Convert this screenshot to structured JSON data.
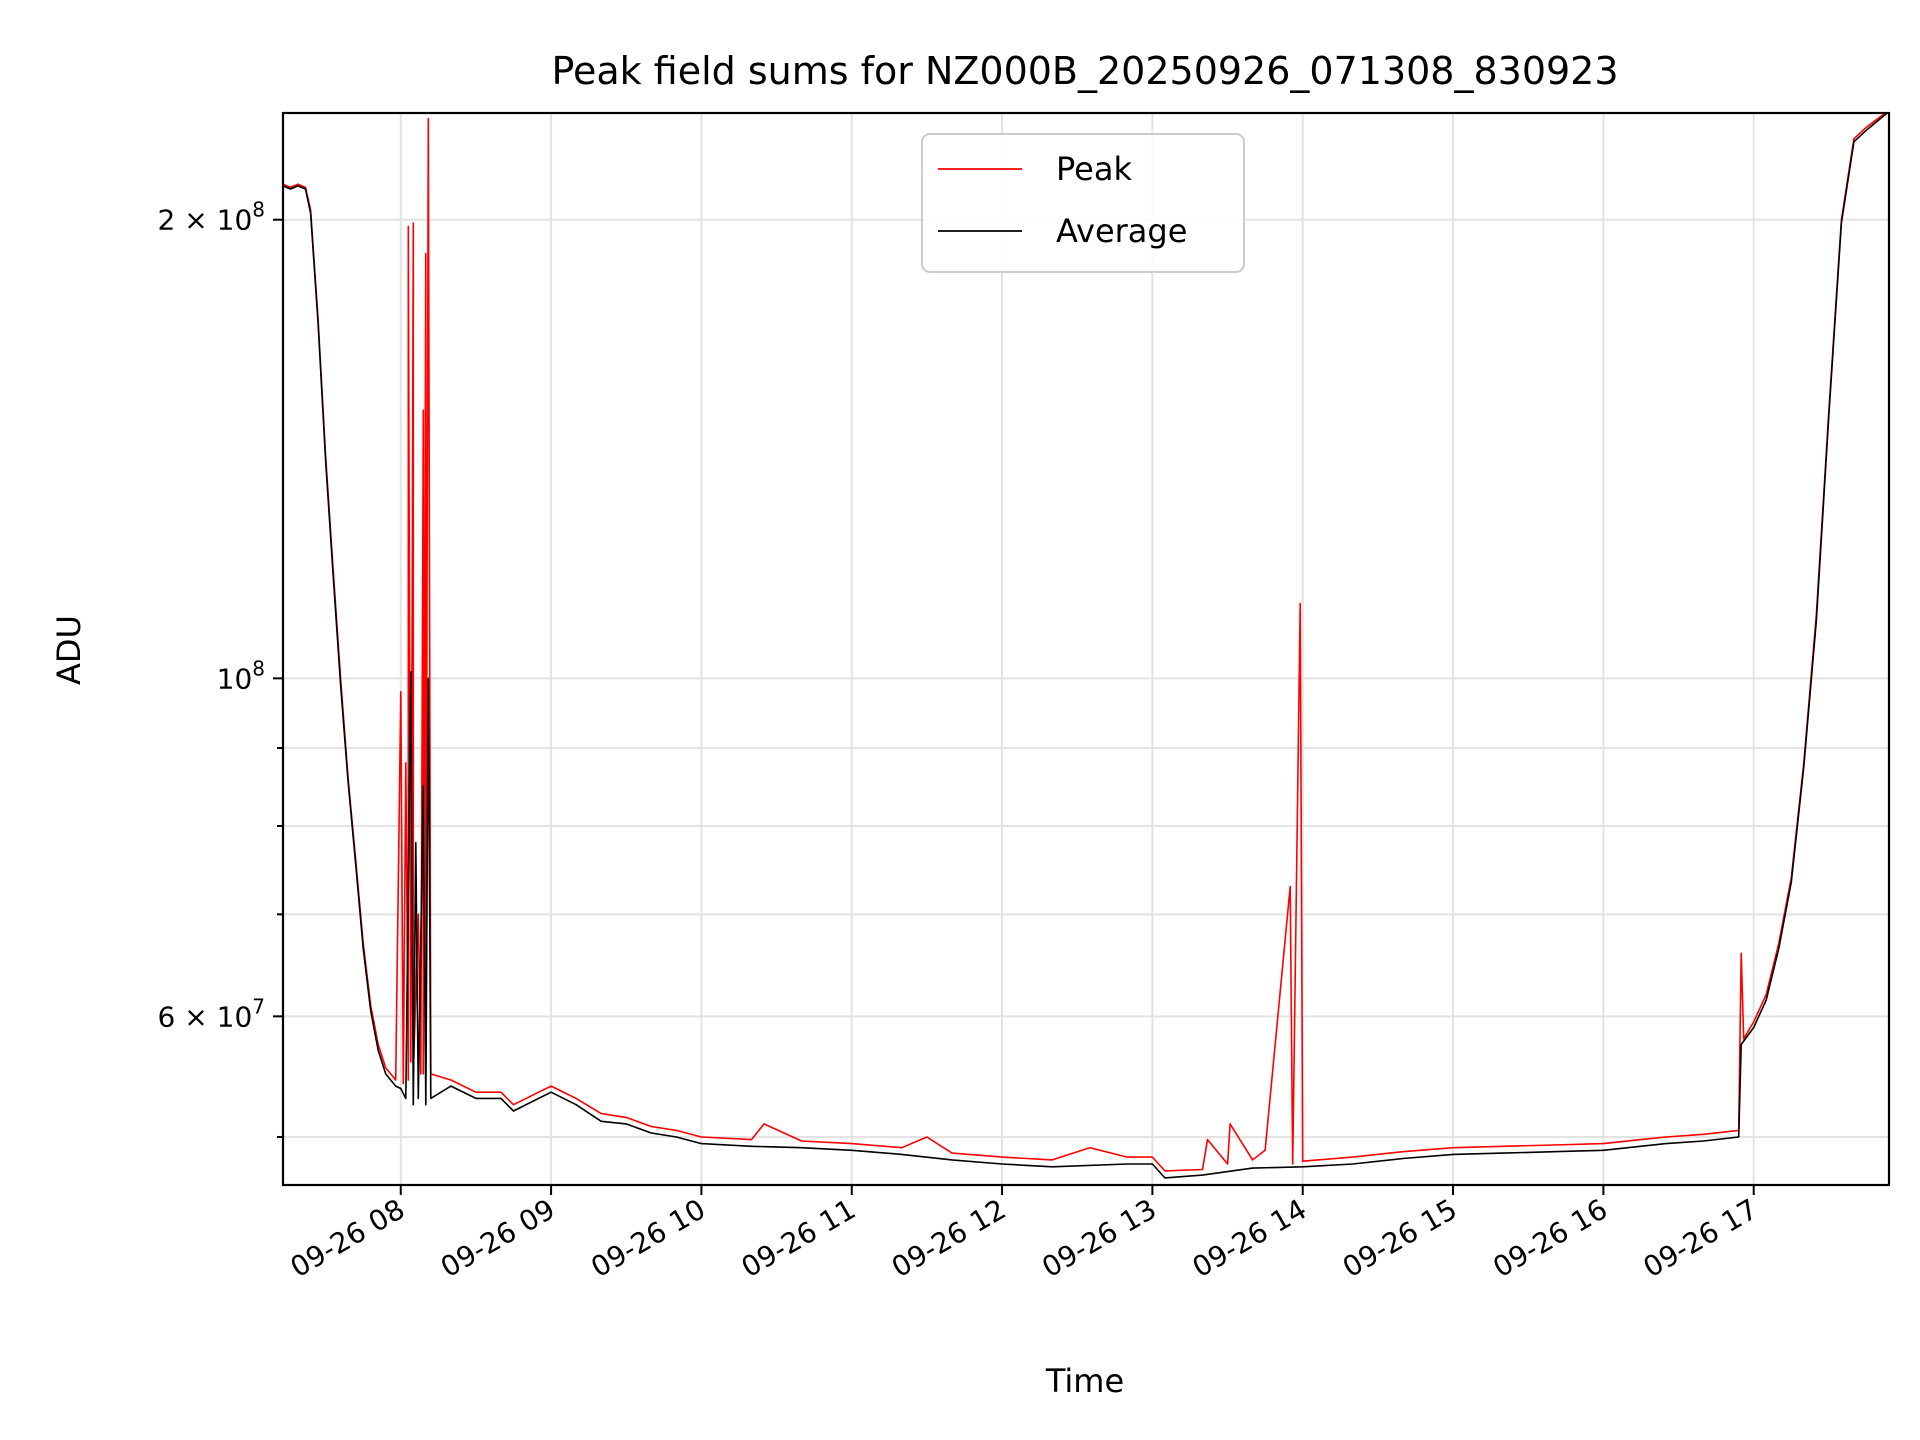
{
  "chart_data": {
    "type": "line",
    "title": "Peak field sums for NZ000B_20250926_071308_830923",
    "xlabel": "Time",
    "ylabel": "ADU",
    "yscale": "log",
    "xlim": [
      "2025-09-26 07:13",
      "2025-09-26 17:54"
    ],
    "ylim": [
      46500000,
      235000000
    ],
    "grid": true,
    "legend_position": "top-center",
    "x_ticks": [
      {
        "value": "2025-09-26 08:00",
        "label": "09-26 08"
      },
      {
        "value": "2025-09-26 09:00",
        "label": "09-26 09"
      },
      {
        "value": "2025-09-26 10:00",
        "label": "09-26 10"
      },
      {
        "value": "2025-09-26 11:00",
        "label": "09-26 11"
      },
      {
        "value": "2025-09-26 12:00",
        "label": "09-26 12"
      },
      {
        "value": "2025-09-26 13:00",
        "label": "09-26 13"
      },
      {
        "value": "2025-09-26 14:00",
        "label": "09-26 14"
      },
      {
        "value": "2025-09-26 15:00",
        "label": "09-26 15"
      },
      {
        "value": "2025-09-26 16:00",
        "label": "09-26 16"
      },
      {
        "value": "2025-09-26 17:00",
        "label": "09-26 17"
      }
    ],
    "y_major_ticks": [
      {
        "value": 60000000,
        "mant": "6",
        "exp": "7"
      },
      {
        "value": 100000000,
        "mant": "",
        "exp": "8"
      },
      {
        "value": 200000000,
        "mant": "2",
        "exp": "8"
      }
    ],
    "y_minor_ticks": [
      50000000,
      70000000,
      80000000,
      90000000
    ],
    "series": [
      {
        "name": "Peak",
        "color": "#ff0000",
        "points": [
          [
            "2025-09-26 07:13",
            211000000
          ],
          [
            "2025-09-26 07:16",
            210000000
          ],
          [
            "2025-09-26 07:19",
            211000000
          ],
          [
            "2025-09-26 07:22",
            210000000
          ],
          [
            "2025-09-26 07:24",
            203000000
          ],
          [
            "2025-09-26 07:27",
            172000000
          ],
          [
            "2025-09-26 07:30",
            140000000
          ],
          [
            "2025-09-26 07:33",
            118000000
          ],
          [
            "2025-09-26 07:36",
            100000000
          ],
          [
            "2025-09-26 07:39",
            86000000
          ],
          [
            "2025-09-26 07:42",
            76000000
          ],
          [
            "2025-09-26 07:45",
            67000000
          ],
          [
            "2025-09-26 07:48",
            61000000
          ],
          [
            "2025-09-26 07:51",
            57500000
          ],
          [
            "2025-09-26 07:54",
            55500000
          ],
          [
            "2025-09-26 07:58",
            54500000
          ],
          [
            "2025-09-26 08:00",
            98000000
          ],
          [
            "2025-09-26 08:01",
            54200000
          ],
          [
            "2025-09-26 08:02",
            88000000
          ],
          [
            "2025-09-26 08:03",
            54500000
          ],
          [
            "2025-09-26 08:03",
            198000000
          ],
          [
            "2025-09-26 08:04",
            56000000
          ],
          [
            "2025-09-26 08:05",
            199000000
          ],
          [
            "2025-09-26 08:05",
            55000000
          ],
          [
            "2025-09-26 08:07",
            70000000
          ],
          [
            "2025-09-26 08:08",
            55000000
          ],
          [
            "2025-09-26 08:09",
            150000000
          ],
          [
            "2025-09-26 08:09",
            55000000
          ],
          [
            "2025-09-26 08:10",
            190000000
          ],
          [
            "2025-09-26 08:10",
            56000000
          ],
          [
            "2025-09-26 08:11",
            233000000
          ],
          [
            "2025-09-26 08:12",
            55000000
          ],
          [
            "2025-09-26 08:20",
            54500000
          ],
          [
            "2025-09-26 08:30",
            53500000
          ],
          [
            "2025-09-26 08:40",
            53500000
          ],
          [
            "2025-09-26 08:45",
            52500000
          ],
          [
            "2025-09-26 08:55",
            53500000
          ],
          [
            "2025-09-26 09:00",
            54000000
          ],
          [
            "2025-09-26 09:10",
            53000000
          ],
          [
            "2025-09-26 09:20",
            51800000
          ],
          [
            "2025-09-26 09:30",
            51500000
          ],
          [
            "2025-09-26 09:40",
            50800000
          ],
          [
            "2025-09-26 09:50",
            50500000
          ],
          [
            "2025-09-26 10:00",
            50000000
          ],
          [
            "2025-09-26 10:20",
            49800000
          ],
          [
            "2025-09-26 10:25",
            51000000
          ],
          [
            "2025-09-26 10:40",
            49700000
          ],
          [
            "2025-09-26 11:00",
            49500000
          ],
          [
            "2025-09-26 11:20",
            49200000
          ],
          [
            "2025-09-26 11:30",
            50000000
          ],
          [
            "2025-09-26 11:40",
            48800000
          ],
          [
            "2025-09-26 12:00",
            48500000
          ],
          [
            "2025-09-26 12:20",
            48300000
          ],
          [
            "2025-09-26 12:35",
            49200000
          ],
          [
            "2025-09-26 12:50",
            48500000
          ],
          [
            "2025-09-26 13:00",
            48500000
          ],
          [
            "2025-09-26 13:05",
            47500000
          ],
          [
            "2025-09-26 13:20",
            47600000
          ],
          [
            "2025-09-26 13:22",
            49800000
          ],
          [
            "2025-09-26 13:30",
            48000000
          ],
          [
            "2025-09-26 13:31",
            51000000
          ],
          [
            "2025-09-26 13:40",
            48300000
          ],
          [
            "2025-09-26 13:45",
            49000000
          ],
          [
            "2025-09-26 13:55",
            73000000
          ],
          [
            "2025-09-26 13:56",
            48000000
          ],
          [
            "2025-09-26 13:59",
            112000000
          ],
          [
            "2025-09-26 14:00",
            48200000
          ],
          [
            "2025-09-26 14:20",
            48500000
          ],
          [
            "2025-09-26 14:40",
            48900000
          ],
          [
            "2025-09-26 15:00",
            49200000
          ],
          [
            "2025-09-26 15:20",
            49300000
          ],
          [
            "2025-09-26 15:40",
            49400000
          ],
          [
            "2025-09-26 16:00",
            49500000
          ],
          [
            "2025-09-26 16:25",
            50000000
          ],
          [
            "2025-09-26 16:40",
            50200000
          ],
          [
            "2025-09-26 16:54",
            50500000
          ],
          [
            "2025-09-26 16:55",
            66000000
          ],
          [
            "2025-09-26 16:56",
            58000000
          ],
          [
            "2025-09-26 17:00",
            59500000
          ],
          [
            "2025-09-26 17:05",
            62000000
          ],
          [
            "2025-09-26 17:10",
            67000000
          ],
          [
            "2025-09-26 17:15",
            74000000
          ],
          [
            "2025-09-26 17:20",
            88000000
          ],
          [
            "2025-09-26 17:25",
            110000000
          ],
          [
            "2025-09-26 17:30",
            150000000
          ],
          [
            "2025-09-26 17:35",
            200000000
          ],
          [
            "2025-09-26 17:40",
            226000000
          ],
          [
            "2025-09-26 17:45",
            230000000
          ],
          [
            "2025-09-26 17:54",
            236000000
          ]
        ]
      },
      {
        "name": "Average",
        "color": "#000000",
        "points": [
          [
            "2025-09-26 07:13",
            210500000
          ],
          [
            "2025-09-26 07:16",
            209500000
          ],
          [
            "2025-09-26 07:19",
            210500000
          ],
          [
            "2025-09-26 07:22",
            209500000
          ],
          [
            "2025-09-26 07:24",
            202000000
          ],
          [
            "2025-09-26 07:27",
            171000000
          ],
          [
            "2025-09-26 07:30",
            139000000
          ],
          [
            "2025-09-26 07:33",
            117000000
          ],
          [
            "2025-09-26 07:36",
            99000000
          ],
          [
            "2025-09-26 07:39",
            85500000
          ],
          [
            "2025-09-26 07:42",
            75500000
          ],
          [
            "2025-09-26 07:45",
            66500000
          ],
          [
            "2025-09-26 07:48",
            60500000
          ],
          [
            "2025-09-26 07:51",
            57000000
          ],
          [
            "2025-09-26 07:54",
            55000000
          ],
          [
            "2025-09-26 07:58",
            54000000
          ],
          [
            "2025-09-26 08:00",
            53800000
          ],
          [
            "2025-09-26 08:02",
            53000000
          ],
          [
            "2025-09-26 08:04",
            101000000
          ],
          [
            "2025-09-26 08:05",
            52500000
          ],
          [
            "2025-09-26 08:06",
            78000000
          ],
          [
            "2025-09-26 08:07",
            53000000
          ],
          [
            "2025-09-26 08:09",
            85000000
          ],
          [
            "2025-09-26 08:10",
            52500000
          ],
          [
            "2025-09-26 08:11",
            100000000
          ],
          [
            "2025-09-26 08:12",
            53000000
          ],
          [
            "2025-09-26 08:20",
            54000000
          ],
          [
            "2025-09-26 08:30",
            53000000
          ],
          [
            "2025-09-26 08:40",
            53000000
          ],
          [
            "2025-09-26 08:45",
            52000000
          ],
          [
            "2025-09-26 08:55",
            53000000
          ],
          [
            "2025-09-26 09:00",
            53500000
          ],
          [
            "2025-09-26 09:10",
            52500000
          ],
          [
            "2025-09-26 09:20",
            51200000
          ],
          [
            "2025-09-26 09:30",
            51000000
          ],
          [
            "2025-09-26 09:40",
            50300000
          ],
          [
            "2025-09-26 09:50",
            50000000
          ],
          [
            "2025-09-26 10:00",
            49500000
          ],
          [
            "2025-09-26 10:20",
            49300000
          ],
          [
            "2025-09-26 10:40",
            49200000
          ],
          [
            "2025-09-26 11:00",
            49000000
          ],
          [
            "2025-09-26 11:20",
            48700000
          ],
          [
            "2025-09-26 11:40",
            48300000
          ],
          [
            "2025-09-26 12:00",
            48000000
          ],
          [
            "2025-09-26 12:20",
            47800000
          ],
          [
            "2025-09-26 12:50",
            48000000
          ],
          [
            "2025-09-26 13:00",
            48000000
          ],
          [
            "2025-09-26 13:05",
            47000000
          ],
          [
            "2025-09-26 13:20",
            47200000
          ],
          [
            "2025-09-26 13:40",
            47700000
          ],
          [
            "2025-09-26 14:00",
            47800000
          ],
          [
            "2025-09-26 14:20",
            48000000
          ],
          [
            "2025-09-26 14:40",
            48400000
          ],
          [
            "2025-09-26 15:00",
            48700000
          ],
          [
            "2025-09-26 15:20",
            48800000
          ],
          [
            "2025-09-26 15:40",
            48900000
          ],
          [
            "2025-09-26 16:00",
            49000000
          ],
          [
            "2025-09-26 16:25",
            49500000
          ],
          [
            "2025-09-26 16:40",
            49700000
          ],
          [
            "2025-09-26 16:54",
            50000000
          ],
          [
            "2025-09-26 16:55",
            57500000
          ],
          [
            "2025-09-26 17:00",
            59000000
          ],
          [
            "2025-09-26 17:05",
            61500000
          ],
          [
            "2025-09-26 17:10",
            66500000
          ],
          [
            "2025-09-26 17:15",
            73500000
          ],
          [
            "2025-09-26 17:20",
            87500000
          ],
          [
            "2025-09-26 17:25",
            109000000
          ],
          [
            "2025-09-26 17:30",
            149000000
          ],
          [
            "2025-09-26 17:35",
            199000000
          ],
          [
            "2025-09-26 17:40",
            225000000
          ],
          [
            "2025-09-26 17:45",
            229000000
          ],
          [
            "2025-09-26 17:54",
            235500000
          ]
        ]
      }
    ]
  }
}
